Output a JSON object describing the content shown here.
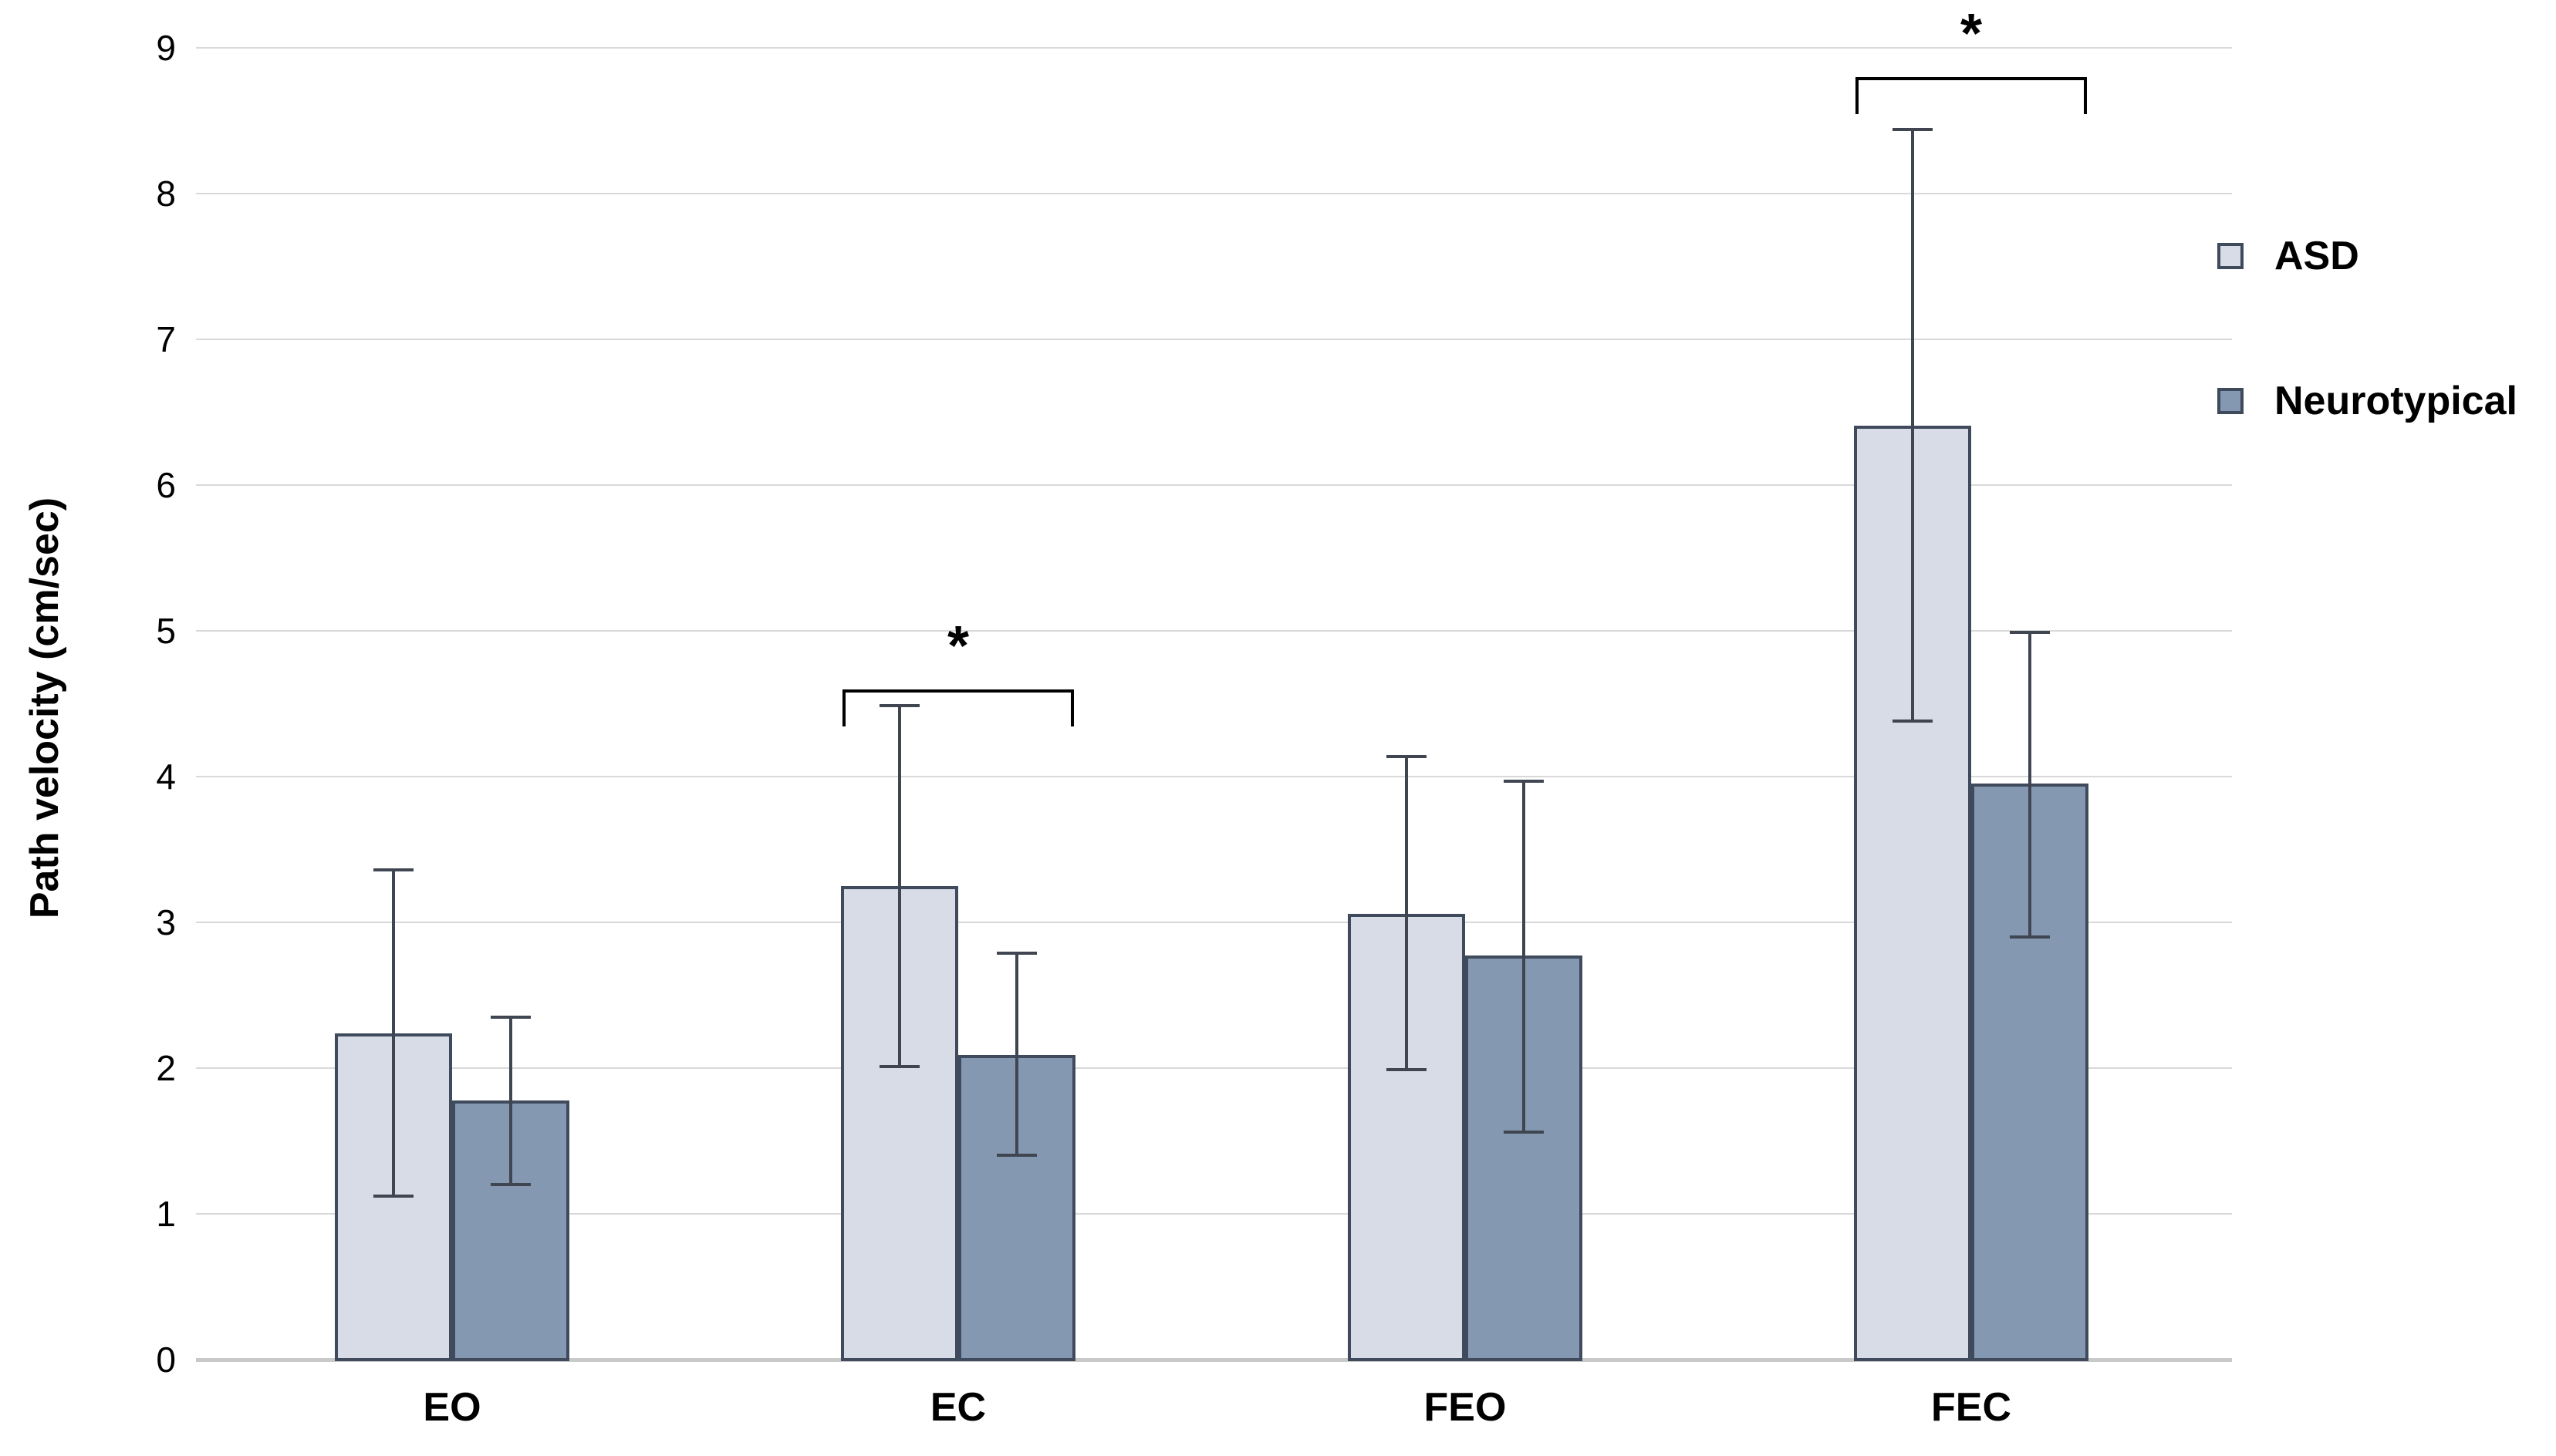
{
  "chart_data": {
    "type": "bar",
    "title": "",
    "xlabel": "",
    "ylabel": "Path velocity (cm/sec)",
    "ylim": [
      0,
      9
    ],
    "yticks": [
      0,
      1,
      2,
      3,
      4,
      5,
      6,
      7,
      8,
      9
    ],
    "grid": true,
    "legend_position": "right",
    "categories": [
      "EO",
      "EC",
      "FEO",
      "FEC"
    ],
    "series": [
      {
        "name": "ASD",
        "color": "#d7dce6",
        "values": [
          2.24,
          3.25,
          3.06,
          6.41
        ],
        "error_low": [
          1.11,
          2.0,
          1.98,
          4.37
        ],
        "error_high": [
          3.37,
          4.5,
          4.15,
          8.45
        ]
      },
      {
        "name": "Neurotypical",
        "color": "#8498b1",
        "values": [
          1.78,
          2.09,
          2.77,
          3.95
        ],
        "error_low": [
          1.19,
          1.39,
          1.55,
          2.89
        ],
        "error_high": [
          2.36,
          2.8,
          3.98,
          5.0
        ]
      }
    ],
    "significance_markers": [
      {
        "category": "EC",
        "label": "*",
        "bracket_y": 4.6
      },
      {
        "category": "FEC",
        "label": "*",
        "bracket_y": 8.8
      }
    ],
    "colors": {
      "bar_border": "#3f4a5c",
      "error_bar": "#3f4651",
      "gridline": "#d9d9d9",
      "axis_line": "#c9c9c9",
      "text": "#000000",
      "background": "#ffffff"
    }
  }
}
